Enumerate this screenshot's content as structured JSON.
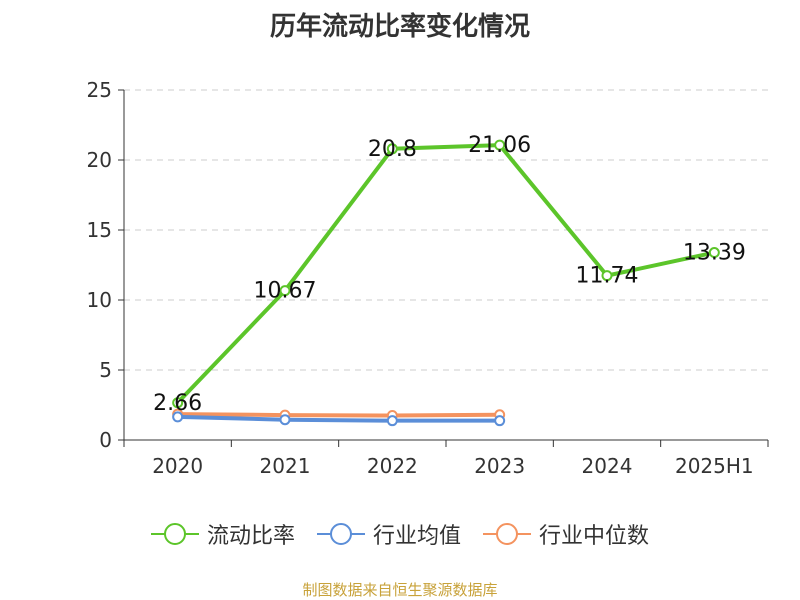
{
  "chart_data": {
    "type": "line",
    "title": "历年流动比率变化情况",
    "categories": [
      "2020",
      "2021",
      "2022",
      "2023",
      "2024",
      "2025H1"
    ],
    "ylim": [
      0,
      25
    ],
    "yticks": [
      0,
      5,
      10,
      15,
      20,
      25
    ],
    "grid": true,
    "legend_position": "bottom",
    "series": [
      {
        "name": "流动比率",
        "color": "#5cc52a",
        "values": [
          2.66,
          10.67,
          20.8,
          21.06,
          11.74,
          13.39
        ],
        "labels": [
          "2.66",
          "10.67",
          "20.8",
          "21.06",
          "11.74",
          "13.39"
        ]
      },
      {
        "name": "行业均值",
        "color": "#5b8ed8",
        "values": [
          1.65,
          1.45,
          1.38,
          1.38,
          null,
          null
        ]
      },
      {
        "name": "行业中位数",
        "color": "#f4935f",
        "values": [
          1.85,
          1.78,
          1.75,
          1.8,
          null,
          null
        ]
      }
    ]
  },
  "source_note": "制图数据来自恒生聚源数据库"
}
